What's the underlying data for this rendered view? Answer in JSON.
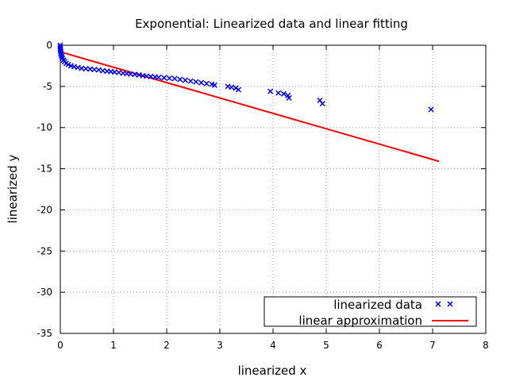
{
  "chart_data": {
    "type": "scatter",
    "title": "Exponential: Linearized data and linear fitting",
    "xlabel": "linearized x",
    "ylabel": "linearized y",
    "xlim": [
      0,
      8
    ],
    "ylim": [
      -35,
      0
    ],
    "xticks": [
      0,
      1,
      2,
      3,
      4,
      5,
      6,
      7,
      8
    ],
    "yticks": [
      0,
      -5,
      -10,
      -15,
      -20,
      -25,
      -30,
      -35
    ],
    "grid": true,
    "legend_position": "bottom-right",
    "series": [
      {
        "name": "linearized data",
        "kind": "scatter",
        "marker": "x",
        "color": "#0000ff",
        "points": [
          [
            0.0,
            0.0
          ],
          [
            0.0,
            -0.2
          ],
          [
            0.0,
            -0.4
          ],
          [
            0.0,
            -0.6
          ],
          [
            0.01,
            -0.8
          ],
          [
            0.01,
            -1.0
          ],
          [
            0.02,
            -1.2
          ],
          [
            0.03,
            -1.4
          ],
          [
            0.04,
            -1.6
          ],
          [
            0.06,
            -1.8
          ],
          [
            0.08,
            -2.0
          ],
          [
            0.11,
            -2.2
          ],
          [
            0.15,
            -2.35
          ],
          [
            0.2,
            -2.5
          ],
          [
            0.26,
            -2.6
          ],
          [
            0.33,
            -2.7
          ],
          [
            0.4,
            -2.8
          ],
          [
            0.48,
            -2.85
          ],
          [
            0.56,
            -2.9
          ],
          [
            0.64,
            -2.95
          ],
          [
            0.72,
            -3.0
          ],
          [
            0.8,
            -3.1
          ],
          [
            0.88,
            -3.15
          ],
          [
            0.95,
            -3.2
          ],
          [
            1.02,
            -3.25
          ],
          [
            1.1,
            -3.3
          ],
          [
            1.18,
            -3.4
          ],
          [
            1.25,
            -3.45
          ],
          [
            1.32,
            -3.5
          ],
          [
            1.4,
            -3.55
          ],
          [
            1.48,
            -3.6
          ],
          [
            1.55,
            -3.7
          ],
          [
            1.62,
            -3.75
          ],
          [
            1.7,
            -3.8
          ],
          [
            1.78,
            -3.85
          ],
          [
            1.85,
            -3.9
          ],
          [
            1.95,
            -3.95
          ],
          [
            2.05,
            -4.0
          ],
          [
            2.15,
            -4.05
          ],
          [
            2.25,
            -4.15
          ],
          [
            2.35,
            -4.25
          ],
          [
            2.45,
            -4.35
          ],
          [
            2.55,
            -4.45
          ],
          [
            2.65,
            -4.55
          ],
          [
            2.75,
            -4.65
          ],
          [
            2.85,
            -4.75
          ],
          [
            2.9,
            -4.85
          ],
          [
            3.15,
            -5.0
          ],
          [
            3.22,
            -5.1
          ],
          [
            3.3,
            -5.2
          ],
          [
            3.35,
            -5.4
          ],
          [
            3.95,
            -5.6
          ],
          [
            4.1,
            -5.8
          ],
          [
            4.2,
            -5.9
          ],
          [
            4.28,
            -6.1
          ],
          [
            4.3,
            -6.4
          ],
          [
            4.88,
            -6.7
          ],
          [
            4.93,
            -7.1
          ],
          [
            6.97,
            -7.8
          ]
        ]
      },
      {
        "name": "linear approximation",
        "kind": "line",
        "color": "#ff0000",
        "points": [
          [
            0.0,
            -0.8
          ],
          [
            7.12,
            -14.1
          ]
        ]
      }
    ]
  }
}
